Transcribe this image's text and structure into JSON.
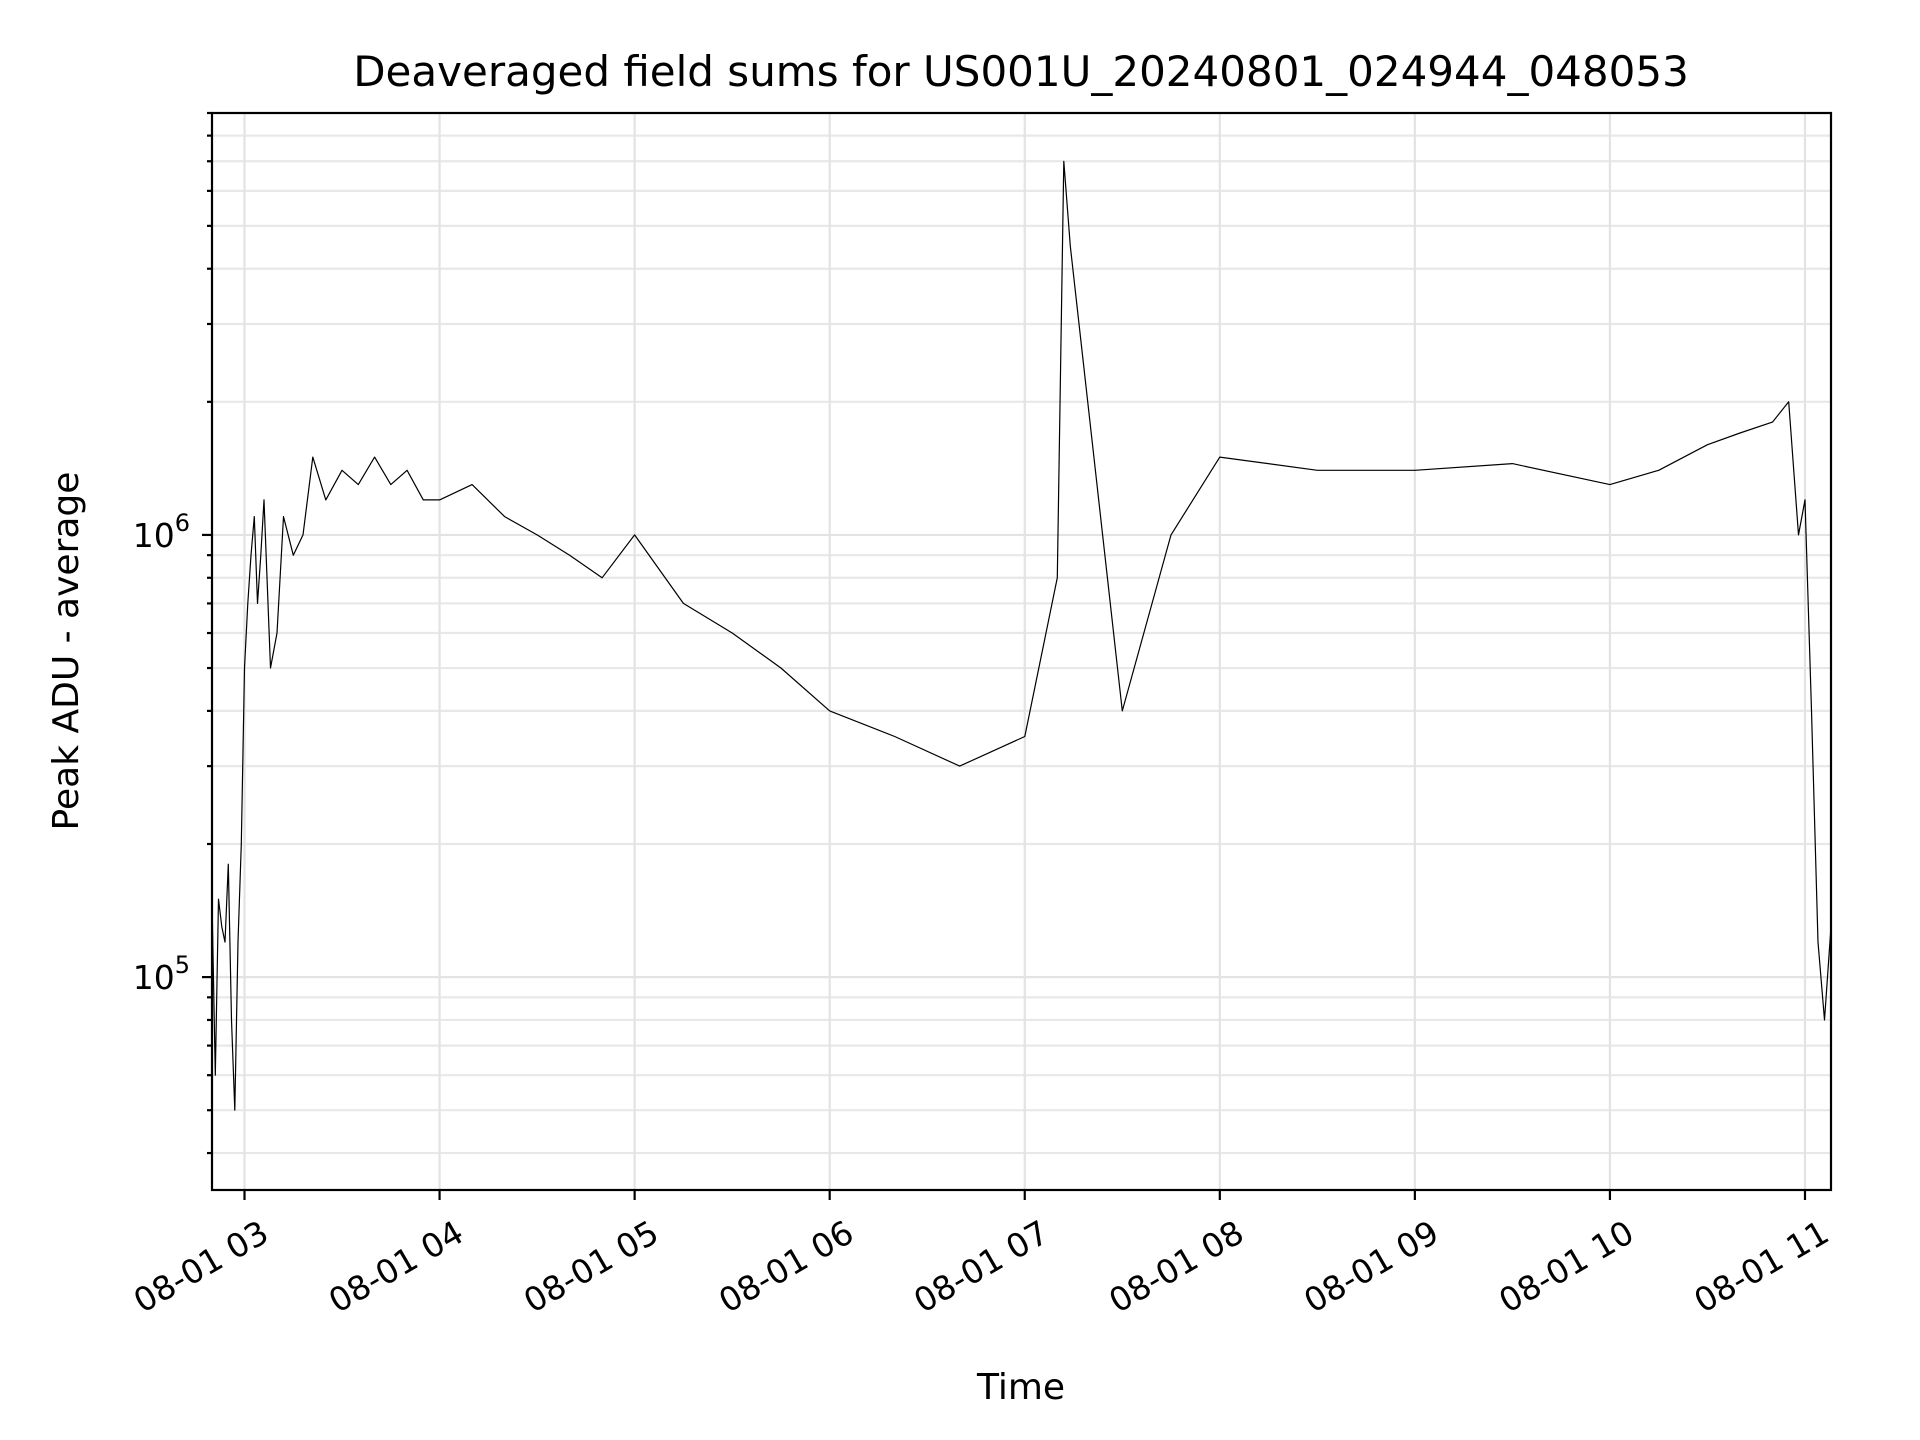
{
  "chart_data": {
    "type": "line",
    "title": "Deaveraged field sums for US001U_20240801_024944_048053",
    "xlabel": "Time",
    "ylabel": "Peak ADU - average",
    "yscale": "log",
    "xlim": [
      "2024-08-01 02:50",
      "2024-08-01 11:08"
    ],
    "ylim": [
      33000,
      9000000
    ],
    "grid": true,
    "grid_minor": true,
    "x_ticks": [
      {
        "value": "2024-08-01 03:00",
        "label": "08-01 03"
      },
      {
        "value": "2024-08-01 04:00",
        "label": "08-01 04"
      },
      {
        "value": "2024-08-01 05:00",
        "label": "08-01 05"
      },
      {
        "value": "2024-08-01 06:00",
        "label": "08-01 06"
      },
      {
        "value": "2024-08-01 07:00",
        "label": "08-01 07"
      },
      {
        "value": "2024-08-01 08:00",
        "label": "08-01 08"
      },
      {
        "value": "2024-08-01 09:00",
        "label": "08-01 09"
      },
      {
        "value": "2024-08-01 10:00",
        "label": "08-01 10"
      },
      {
        "value": "2024-08-01 11:00",
        "label": "08-01 11"
      }
    ],
    "y_ticks": [
      {
        "value": 100000,
        "base": "10",
        "exp": "5"
      },
      {
        "value": 1000000,
        "base": "10",
        "exp": "6"
      }
    ],
    "line_color": "#000000",
    "grid_color": "#e3e3e3",
    "series": [
      {
        "x": [
          "2024-08-01 02:50",
          "2024-08-01 02:51",
          "2024-08-01 02:52",
          "2024-08-01 02:53",
          "2024-08-01 02:54",
          "2024-08-01 02:55",
          "2024-08-01 02:56",
          "2024-08-01 02:57",
          "2024-08-01 02:58",
          "2024-08-01 02:59",
          "2024-08-01 03:00",
          "2024-08-01 03:01",
          "2024-08-01 03:02",
          "2024-08-01 03:03",
          "2024-08-01 03:04",
          "2024-08-01 03:05",
          "2024-08-01 03:06",
          "2024-08-01 03:08",
          "2024-08-01 03:10",
          "2024-08-01 03:12",
          "2024-08-01 03:15",
          "2024-08-01 03:18",
          "2024-08-01 03:21",
          "2024-08-01 03:25",
          "2024-08-01 03:30",
          "2024-08-01 03:35",
          "2024-08-01 03:40",
          "2024-08-01 03:45",
          "2024-08-01 03:50",
          "2024-08-01 03:55",
          "2024-08-01 04:00",
          "2024-08-01 04:10",
          "2024-08-01 04:20",
          "2024-08-01 04:30",
          "2024-08-01 04:40",
          "2024-08-01 04:50",
          "2024-08-01 05:00",
          "2024-08-01 05:15",
          "2024-08-01 05:30",
          "2024-08-01 05:45",
          "2024-08-01 06:00",
          "2024-08-01 06:20",
          "2024-08-01 06:40",
          "2024-08-01 07:00",
          "2024-08-01 07:10",
          "2024-08-01 07:12",
          "2024-08-01 07:14",
          "2024-08-01 07:30",
          "2024-08-01 07:45",
          "2024-08-01 08:00",
          "2024-08-01 08:30",
          "2024-08-01 09:00",
          "2024-08-01 09:30",
          "2024-08-01 10:00",
          "2024-08-01 10:15",
          "2024-08-01 10:30",
          "2024-08-01 10:40",
          "2024-08-01 10:50",
          "2024-08-01 10:55",
          "2024-08-01 10:58",
          "2024-08-01 11:00",
          "2024-08-01 11:02",
          "2024-08-01 11:04",
          "2024-08-01 11:06",
          "2024-08-01 11:08"
        ],
        "y": [
          150000,
          60000,
          150000,
          130000,
          120000,
          180000,
          80000,
          50000,
          120000,
          200000,
          500000,
          700000,
          900000,
          1100000,
          700000,
          900000,
          1200000,
          500000,
          600000,
          1100000,
          900000,
          1000000,
          1500000,
          1200000,
          1400000,
          1300000,
          1500000,
          1300000,
          1400000,
          1200000,
          1200000,
          1300000,
          1100000,
          1000000,
          900000,
          800000,
          1000000,
          700000,
          600000,
          500000,
          400000,
          350000,
          300000,
          350000,
          800000,
          7000000,
          4500000,
          400000,
          1000000,
          1500000,
          1400000,
          1400000,
          1450000,
          1300000,
          1400000,
          1600000,
          1700000,
          1800000,
          2000000,
          1000000,
          1200000,
          400000,
          120000,
          80000,
          130000
        ]
      }
    ]
  }
}
